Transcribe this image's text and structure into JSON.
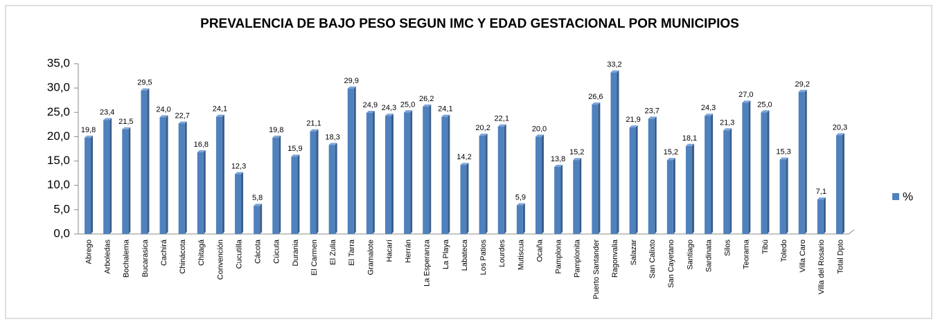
{
  "chart_data": {
    "type": "bar",
    "title": "PREVALENCIA DE BAJO PESO SEGUN IMC Y EDAD GESTACIONAL POR MUNICIPIOS",
    "categories": [
      "Abrego",
      "Arboledas",
      "Bochalema",
      "Bucarasica",
      "Cachirá",
      "Chinácota",
      "Chitagá",
      "Convención",
      "Cucutilla",
      "Cácota",
      "Cúcuta",
      "Durania",
      "El Carmen",
      "El Zulia",
      "El Tarra",
      "Gramalote",
      "Hacarí",
      "Herrán",
      "La Esperanza",
      "La Playa",
      "Labateca",
      "Los Patios",
      "Lourdes",
      "Mutiscua",
      "Ocaña",
      "Pamplona",
      "Pamplonita",
      "Puerto Santander",
      "Ragonvalia",
      "Salazar",
      "San Calixto",
      "San Cayetano",
      "Santiago",
      "Sardinata",
      "Silos",
      "Teorama",
      "Tibú",
      "Toledo",
      "Villa Caro",
      "Villa del Rosario",
      "Total Dpto"
    ],
    "series": [
      {
        "name": "%",
        "color": "#4f81bd",
        "values": [
          19.8,
          23.4,
          21.5,
          29.5,
          24.0,
          22.7,
          16.8,
          24.1,
          12.3,
          5.8,
          19.8,
          15.9,
          21.1,
          18.3,
          29.9,
          24.9,
          24.3,
          25.0,
          26.2,
          24.1,
          14.2,
          20.2,
          22.1,
          5.9,
          20.0,
          13.8,
          15.2,
          26.6,
          33.2,
          21.9,
          23.7,
          15.2,
          18.1,
          24.3,
          21.3,
          27.0,
          25.0,
          15.3,
          29.2,
          7.1,
          20.3
        ],
        "value_labels": [
          "19,8",
          "23,4",
          "21,5",
          "29,5",
          "24,0",
          "22,7",
          "16,8",
          "24,1",
          "12,3",
          "5,8",
          "19,8",
          "15,9",
          "21,1",
          "18,3",
          "29,9",
          "24,9",
          "24,3",
          "25,0",
          "26,2",
          "24,1",
          "14,2",
          "20,2",
          "22,1",
          "5,9",
          "20,0",
          "13,8",
          "15,2",
          "26,6",
          "33,2",
          "21,9",
          "23,7",
          "15,2",
          "18,1",
          "24,3",
          "21,3",
          "27,0",
          "25,0",
          "15,3",
          "29,2",
          "7,1",
          "20,3"
        ]
      }
    ],
    "ylim": [
      0,
      35
    ],
    "yticks": [
      {
        "value": 0,
        "label": "0,0"
      },
      {
        "value": 5,
        "label": "5,0"
      },
      {
        "value": 10,
        "label": "10,0"
      },
      {
        "value": 15,
        "label": "15,0"
      },
      {
        "value": 20,
        "label": "20,0"
      },
      {
        "value": 25,
        "label": "25,0"
      },
      {
        "value": 30,
        "label": "30,0"
      },
      {
        "value": 35,
        "label": "35,0"
      }
    ],
    "legend": "right"
  }
}
